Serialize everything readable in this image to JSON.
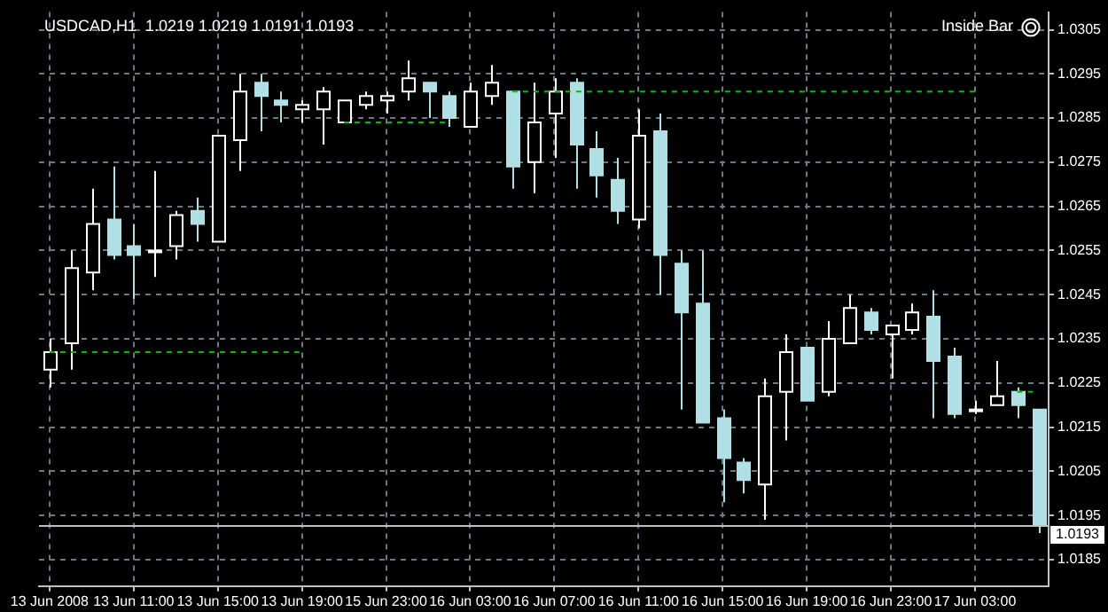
{
  "chart_data": {
    "type": "candlestick",
    "title": "USDCAD,H1  1.0219 1.0219 1.0191 1.0193",
    "annotations": [
      "Inside Bar"
    ],
    "categories": [
      "13 Jun 2008",
      null,
      null,
      null,
      "13 Jun 11:00",
      null,
      null,
      null,
      "13 Jun 15:00",
      null,
      null,
      null,
      "13 Jun 19:00",
      null,
      null,
      null,
      "15 Jun 23:00",
      null,
      null,
      null,
      "16 Jun 03:00",
      null,
      null,
      null,
      "16 Jun 07:00",
      null,
      null,
      null,
      "16 Jun 11:00",
      null,
      null,
      null,
      "16 Jun 15:00",
      null,
      null,
      null,
      "16 Jun 19:00",
      null,
      null,
      null,
      "16 Jun 23:00",
      null,
      null,
      null,
      "17 Jun 03:00",
      null,
      null,
      null
    ],
    "ohlc": [
      [
        1.0228,
        1.0235,
        1.0224,
        1.0232
      ],
      [
        1.0234,
        1.0255,
        1.0228,
        1.0251
      ],
      [
        1.025,
        1.0269,
        1.0246,
        1.0261
      ],
      [
        1.0262,
        1.0274,
        1.0253,
        1.0254
      ],
      [
        1.0256,
        1.0261,
        1.0244,
        1.0254
      ],
      [
        1.0255,
        1.0273,
        1.0249,
        1.0255
      ],
      [
        1.0256,
        1.0264,
        1.0253,
        1.0263
      ],
      [
        1.0264,
        1.0267,
        1.0257,
        1.0261
      ],
      [
        1.0257,
        1.0281,
        1.0257,
        1.0281
      ],
      [
        1.028,
        1.0295,
        1.0273,
        1.0291
      ],
      [
        1.0293,
        1.0295,
        1.0282,
        1.029
      ],
      [
        1.0289,
        1.0291,
        1.0284,
        1.0288
      ],
      [
        1.0287,
        1.0289,
        1.0284,
        1.0288
      ],
      [
        1.0287,
        1.0292,
        1.0279,
        1.0291
      ],
      [
        1.0284,
        1.0289,
        1.0284,
        1.0289
      ],
      [
        1.0288,
        1.0291,
        1.0287,
        1.029
      ],
      [
        1.0289,
        1.0291,
        1.0286,
        1.029
      ],
      [
        1.0291,
        1.0298,
        1.0289,
        1.0294
      ],
      [
        1.0293,
        1.0293,
        1.0285,
        1.0291
      ],
      [
        1.029,
        1.0291,
        1.0283,
        1.0285
      ],
      [
        1.0283,
        1.0293,
        1.0283,
        1.0291
      ],
      [
        1.029,
        1.0297,
        1.0288,
        1.0293
      ],
      [
        1.0291,
        1.0291,
        1.0269,
        1.0274
      ],
      [
        1.0275,
        1.0293,
        1.0268,
        1.0284
      ],
      [
        1.0286,
        1.0294,
        1.0276,
        1.0291
      ],
      [
        1.0293,
        1.0294,
        1.0269,
        1.0279
      ],
      [
        1.0278,
        1.0282,
        1.0267,
        1.0272
      ],
      [
        1.0271,
        1.0276,
        1.0261,
        1.0264
      ],
      [
        1.0262,
        1.0287,
        1.026,
        1.0281
      ],
      [
        1.0282,
        1.0286,
        1.0245,
        1.0254
      ],
      [
        1.0252,
        1.0255,
        1.0219,
        1.0241
      ],
      [
        1.0243,
        1.0255,
        1.0216,
        1.0216
      ],
      [
        1.0217,
        1.0219,
        1.0198,
        1.0208
      ],
      [
        1.0207,
        1.0208,
        1.02,
        1.0203
      ],
      [
        1.0202,
        1.0226,
        1.0194,
        1.0222
      ],
      [
        1.0223,
        1.0236,
        1.0212,
        1.0232
      ],
      [
        1.0233,
        1.0233,
        1.0221,
        1.0221
      ],
      [
        1.0223,
        1.0239,
        1.0222,
        1.0235
      ],
      [
        1.0234,
        1.0245,
        1.0234,
        1.0242
      ],
      [
        1.0241,
        1.0242,
        1.0236,
        1.0237
      ],
      [
        1.0236,
        1.0238,
        1.0226,
        1.0238
      ],
      [
        1.0237,
        1.0243,
        1.0236,
        1.0241
      ],
      [
        1.024,
        1.0246,
        1.0217,
        1.023
      ],
      [
        1.0231,
        1.0233,
        1.0217,
        1.0218
      ],
      [
        1.0219,
        1.0221,
        1.0218,
        1.0219
      ],
      [
        1.022,
        1.023,
        1.022,
        1.0222
      ],
      [
        1.0223,
        1.0224,
        1.0217,
        1.022
      ],
      [
        1.0219,
        1.0219,
        1.0191,
        1.0193
      ]
    ],
    "colors": [
      "#000000",
      "#000000",
      "#000000",
      "#b0e0e6",
      "#b0e0e6",
      "#b0e0e6",
      "#000000",
      "#b0e0e6",
      "#000000",
      "#000000",
      "#b0e0e6",
      "#b0e0e6",
      "#000000",
      "#000000",
      "#000000",
      "#000000",
      "#000000",
      "#000000",
      "#b0e0e6",
      "#b0e0e6",
      "#000000",
      "#000000",
      "#b0e0e6",
      "#000000",
      "#000000",
      "#b0e0e6",
      "#b0e0e6",
      "#b0e0e6",
      "#000000",
      "#b0e0e6",
      "#b0e0e6",
      "#b0e0e6",
      "#b0e0e6",
      "#b0e0e6",
      "#000000",
      "#000000",
      "#b0e0e6",
      "#000000",
      "#000000",
      "#b0e0e6",
      "#000000",
      "#000000",
      "#b0e0e6",
      "#b0e0e6",
      "#000000",
      "#000000",
      "#b0e0e6",
      "#b0e0e6"
    ],
    "series": [
      {
        "type": "line",
        "color": "#00c000",
        "values": [
          1.0232,
          1.0232,
          1.0232,
          1.0232,
          1.0232,
          1.0232,
          1.0232,
          1.0232,
          1.0232,
          1.0232,
          1.0232,
          1.0232,
          1.0232,
          null,
          null,
          null,
          null,
          null,
          null,
          null,
          null,
          null,
          null,
          null,
          null,
          null,
          null,
          null,
          null,
          null,
          null,
          null,
          null,
          null,
          null,
          null,
          null,
          null,
          null,
          null,
          null,
          null,
          null,
          null,
          null,
          null,
          null,
          null
        ]
      },
      {
        "type": "line",
        "color": "#00c000",
        "values": [
          null,
          null,
          null,
          null,
          null,
          null,
          null,
          null,
          null,
          null,
          null,
          null,
          null,
          null,
          1.0284,
          1.0284,
          1.0284,
          1.0284,
          1.0284,
          1.0284,
          null,
          null,
          null,
          null,
          null,
          null,
          null,
          null,
          null,
          null,
          null,
          null,
          null,
          null,
          null,
          null,
          null,
          null,
          null,
          null,
          null,
          null,
          null,
          null,
          null,
          null,
          null,
          null
        ]
      },
      {
        "type": "line",
        "color": "#00c000",
        "values": [
          null,
          null,
          null,
          null,
          null,
          null,
          null,
          null,
          null,
          null,
          null,
          null,
          null,
          null,
          null,
          null,
          null,
          null,
          null,
          null,
          null,
          null,
          1.0291,
          1.0291,
          1.0291,
          1.0291,
          1.0291,
          1.0291,
          1.0291,
          1.0291,
          1.0291,
          1.0291,
          1.0291,
          1.0291,
          1.0291,
          1.0291,
          1.0291,
          1.0291,
          1.0291,
          1.0291,
          1.0291,
          1.0291,
          1.0291,
          1.0291,
          1.0291,
          null,
          null,
          null
        ]
      },
      {
        "type": "line",
        "color": "#00c000",
        "values": [
          null,
          null,
          null,
          null,
          null,
          null,
          null,
          null,
          null,
          null,
          null,
          null,
          null,
          null,
          null,
          null,
          null,
          null,
          null,
          null,
          null,
          null,
          null,
          null,
          null,
          null,
          null,
          null,
          null,
          null,
          null,
          null,
          null,
          null,
          null,
          null,
          null,
          null,
          null,
          null,
          null,
          null,
          null,
          null,
          null,
          null,
          1.0223,
          1.0223
        ]
      }
    ],
    "ylim": [
      1.0179,
      1.0309
    ],
    "yticks": [
      1.0185,
      1.0195,
      1.0205,
      1.0215,
      1.0225,
      1.0235,
      1.0245,
      1.0255,
      1.0265,
      1.0275,
      1.0285,
      1.0295,
      1.0305
    ],
    "ref_lines": [
      {
        "axis": "y",
        "value": 1.0193,
        "label": "1.0193",
        "color": "#c0c0c0"
      }
    ],
    "grid": true,
    "legend": false,
    "marker": "none",
    "line_style": "dashed"
  }
}
